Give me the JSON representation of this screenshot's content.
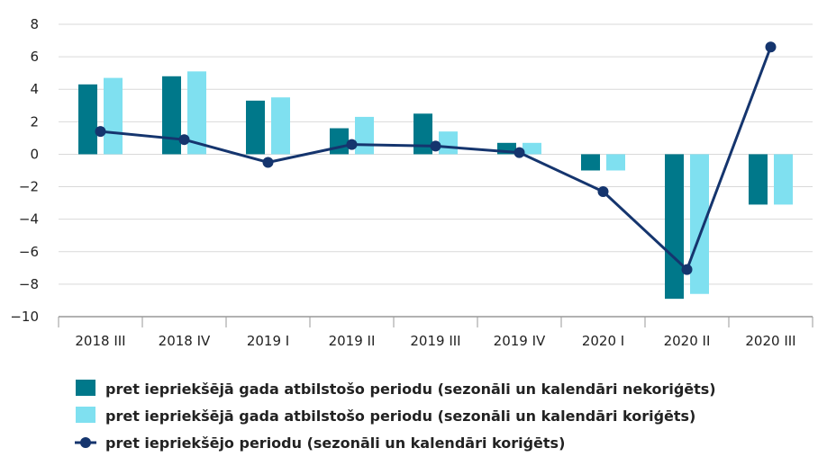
{
  "chart_data": {
    "type": "bar",
    "categories": [
      "2018 III",
      "2018 IV",
      "2019 I",
      "2019 II",
      "2019 III",
      "2019 IV",
      "2020 I",
      "2020 II",
      "2020 III"
    ],
    "ylim": [
      -10,
      8
    ],
    "yticks": [
      -10,
      -8,
      -6,
      -4,
      -2,
      0,
      2,
      4,
      6,
      8
    ],
    "ytick_labels": [
      "−10",
      "−8",
      "−6",
      "−4",
      "−2",
      "0",
      "2",
      "4",
      "6",
      "8"
    ],
    "grid": true,
    "legend_position": "bottom-left",
    "series": [
      {
        "name": "pret iepriekšējā gada atbilstošo periodu (sezonāli un kalendāri nekoriģēts)",
        "kind": "bar",
        "color": "#00788a",
        "values": [
          4.3,
          4.8,
          3.3,
          1.6,
          2.5,
          0.7,
          -1.0,
          -8.9,
          -3.1
        ]
      },
      {
        "name": "pret iepriekšējā gada atbilstošo periodu (sezonāli un kalendāri koriģēts)",
        "kind": "bar",
        "color": "#7fe0f0",
        "values": [
          4.7,
          5.1,
          3.5,
          2.3,
          1.4,
          0.7,
          -1.0,
          -8.6,
          -3.1
        ]
      },
      {
        "name": "pret iepriekšējo periodu (sezonāli un kalendāri koriģēts)",
        "kind": "line",
        "color": "#15356e",
        "values": [
          1.4,
          0.9,
          -0.5,
          0.6,
          0.5,
          0.1,
          -2.3,
          -7.1,
          6.6
        ]
      }
    ]
  }
}
